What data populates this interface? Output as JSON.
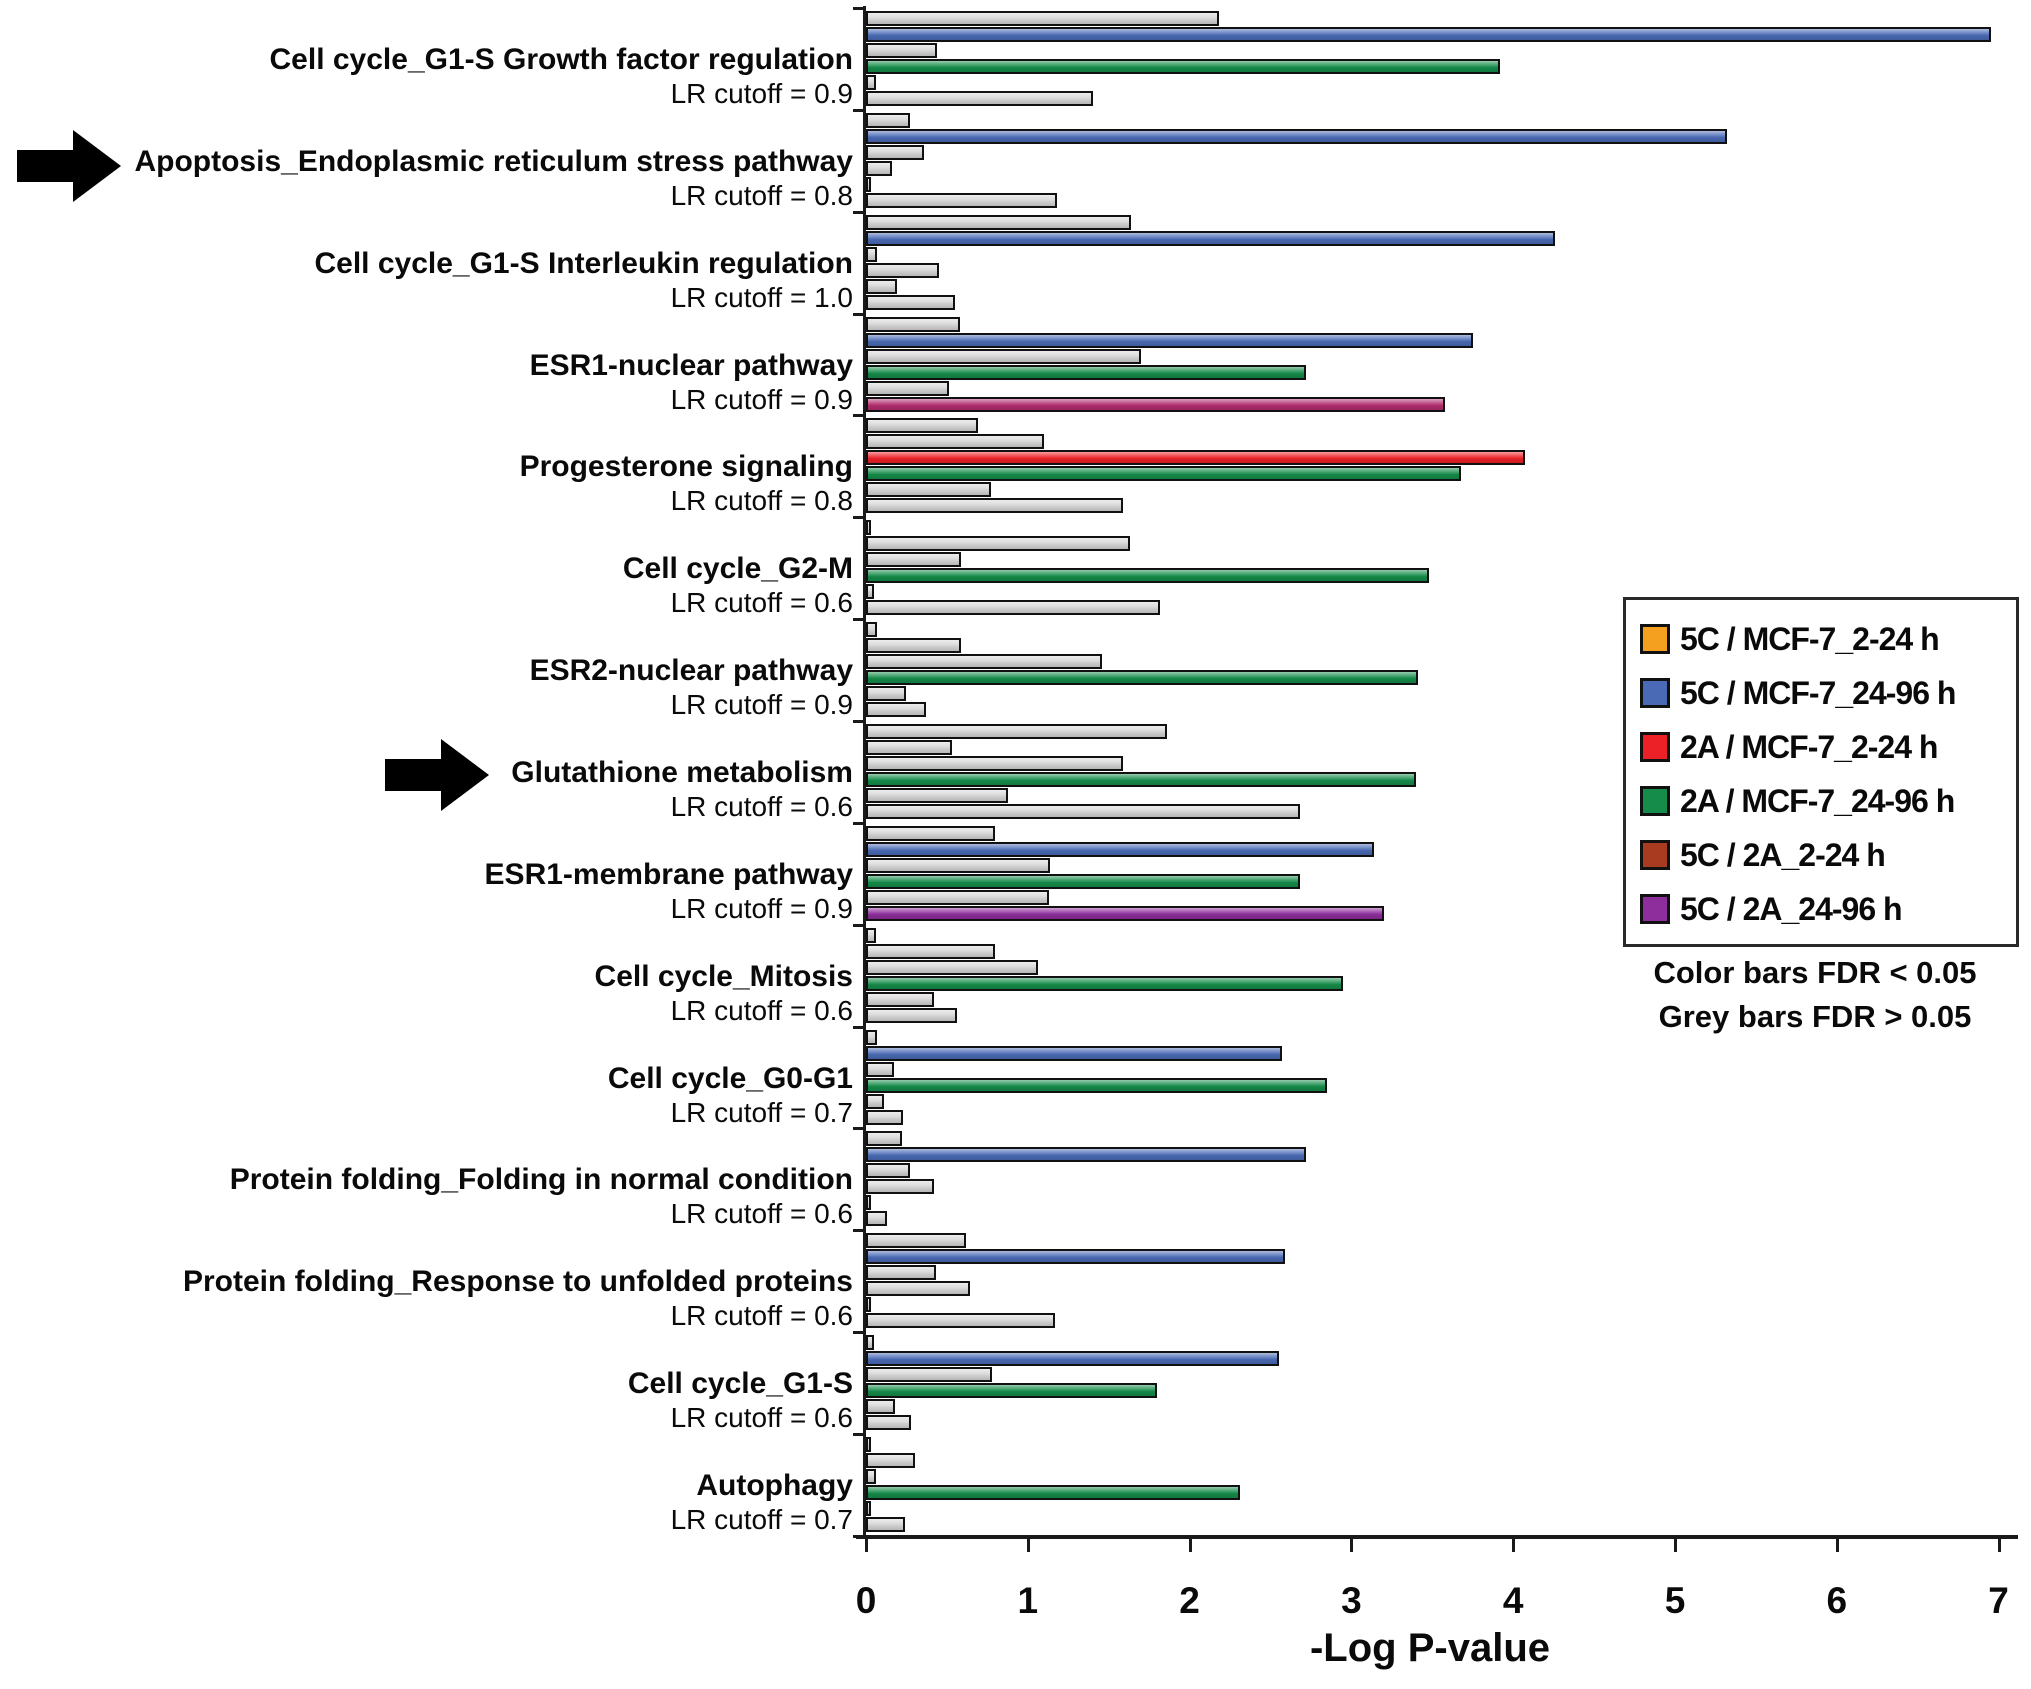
{
  "figure_notes": {
    "color_note": "Color bars FDR < 0.05",
    "grey_note": "Grey bars FDR > 0.05"
  },
  "legend": {
    "entries": [
      {
        "label": "5C / MCF-7_2-24 h",
        "color": "#F5A11F"
      },
      {
        "label": "5C / MCF-7_24-96 h",
        "color": "#4A6AB5"
      },
      {
        "label": "2A / MCF-7_2-24 h",
        "color": "#EC2127"
      },
      {
        "label": "2A / MCF-7_24-96 h",
        "color": "#158C49"
      },
      {
        "label": "5C / 2A_2-24 h",
        "color": "#A93B20"
      },
      {
        "label": "5C / 2A_24-96 h",
        "color": "#8E2D9C"
      }
    ]
  },
  "chart_data": {
    "type": "bar",
    "orientation": "horizontal",
    "xlabel": "-Log P-value",
    "xlim": [
      0,
      7
    ],
    "x_ticks": [
      0,
      1,
      2,
      3,
      4,
      5,
      6,
      7
    ],
    "grid": false,
    "grey_color": "#D6D6D6",
    "series_order": [
      "5C / MCF-7_2-24 h",
      "5C / MCF-7_24-96 h",
      "2A / MCF-7_2-24 h",
      "2A / MCF-7_24-96 h",
      "5C / 2A_2-24 h",
      "5C / 2A_24-96 h"
    ],
    "groups": [
      {
        "name": "Cell cycle_G1-S Growth factor regulation",
        "cutoff_label": "LR cutoff = 0.9",
        "arrow": false,
        "values": [
          2.18,
          6.95,
          0.44,
          3.92,
          0.06,
          1.4
        ],
        "bar_colors": [
          "#D6D6D6",
          "#4A6AB5",
          "#D6D6D6",
          "#158C49",
          "#D6D6D6",
          "#D6D6D6"
        ]
      },
      {
        "name": "Apoptosis_Endoplasmic reticulum stress pathway",
        "cutoff_label": "LR cutoff = 0.8",
        "arrow": true,
        "values": [
          0.27,
          5.32,
          0.36,
          0.16,
          0.03,
          1.18
        ],
        "bar_colors": [
          "#D6D6D6",
          "#4A6AB5",
          "#D6D6D6",
          "#D6D6D6",
          "#D6D6D6",
          "#D6D6D6"
        ]
      },
      {
        "name": "Cell cycle_G1-S Interleukin regulation",
        "cutoff_label": "LR cutoff = 1.0",
        "arrow": false,
        "values": [
          1.64,
          4.26,
          0.07,
          0.45,
          0.19,
          0.55
        ],
        "bar_colors": [
          "#D6D6D6",
          "#4A6AB5",
          "#D6D6D6",
          "#D6D6D6",
          "#D6D6D6",
          "#D6D6D6"
        ]
      },
      {
        "name": "ESR1-nuclear pathway",
        "cutoff_label": "LR cutoff = 0.9",
        "arrow": false,
        "values": [
          0.58,
          3.75,
          1.7,
          2.72,
          0.51,
          3.58
        ],
        "bar_colors": [
          "#D6D6D6",
          "#4A6AB5",
          "#D6D6D6",
          "#158C49",
          "#D6D6D6",
          "#B22D6E"
        ]
      },
      {
        "name": "Progesterone signaling",
        "cutoff_label": "LR cutoff = 0.8",
        "arrow": false,
        "values": [
          0.69,
          1.1,
          4.07,
          3.68,
          0.77,
          1.59
        ],
        "bar_colors": [
          "#D6D6D6",
          "#D6D6D6",
          "#EC2127",
          "#158C49",
          "#D6D6D6",
          "#D6D6D6"
        ]
      },
      {
        "name": "Cell cycle_G2-M",
        "cutoff_label": "LR cutoff = 0.6",
        "arrow": false,
        "values": [
          0.03,
          1.63,
          0.59,
          3.48,
          0.05,
          1.82
        ],
        "bar_colors": [
          "#D6D6D6",
          "#D6D6D6",
          "#D6D6D6",
          "#158C49",
          "#D6D6D6",
          "#D6D6D6"
        ]
      },
      {
        "name": "ESR2-nuclear pathway",
        "cutoff_label": "LR cutoff = 0.9",
        "arrow": false,
        "values": [
          0.07,
          0.59,
          1.46,
          3.41,
          0.25,
          0.37
        ],
        "bar_colors": [
          "#D6D6D6",
          "#D6D6D6",
          "#D6D6D6",
          "#158C49",
          "#D6D6D6",
          "#D6D6D6"
        ]
      },
      {
        "name": "Glutathione metabolism",
        "cutoff_label": "LR cutoff = 0.6",
        "arrow": true,
        "values": [
          1.86,
          0.53,
          1.59,
          3.4,
          0.88,
          2.68
        ],
        "bar_colors": [
          "#D6D6D6",
          "#D6D6D6",
          "#D6D6D6",
          "#158C49",
          "#D6D6D6",
          "#D6D6D6"
        ]
      },
      {
        "name": "ESR1-membrane pathway",
        "cutoff_label": "LR cutoff = 0.9",
        "arrow": false,
        "values": [
          0.8,
          3.14,
          1.14,
          2.68,
          1.13,
          3.2
        ],
        "bar_colors": [
          "#D6D6D6",
          "#4A6AB5",
          "#D6D6D6",
          "#158C49",
          "#D6D6D6",
          "#8E2D9C"
        ]
      },
      {
        "name": "Cell cycle_Mitosis",
        "cutoff_label": "LR cutoff = 0.6",
        "arrow": false,
        "values": [
          0.06,
          0.8,
          1.06,
          2.95,
          0.42,
          0.56
        ],
        "bar_colors": [
          "#D6D6D6",
          "#D6D6D6",
          "#D6D6D6",
          "#158C49",
          "#D6D6D6",
          "#D6D6D6"
        ]
      },
      {
        "name": "Cell cycle_G0-G1",
        "cutoff_label": "LR cutoff = 0.7",
        "arrow": false,
        "values": [
          0.07,
          2.57,
          0.17,
          2.85,
          0.11,
          0.23
        ],
        "bar_colors": [
          "#D6D6D6",
          "#4A6AB5",
          "#D6D6D6",
          "#158C49",
          "#D6D6D6",
          "#D6D6D6"
        ]
      },
      {
        "name": "Protein folding_Folding in normal condition",
        "cutoff_label": "LR cutoff = 0.6",
        "arrow": false,
        "values": [
          0.22,
          2.72,
          0.27,
          0.42,
          0.03,
          0.13
        ],
        "bar_colors": [
          "#D6D6D6",
          "#4A6AB5",
          "#D6D6D6",
          "#D6D6D6",
          "#D6D6D6",
          "#D6D6D6"
        ]
      },
      {
        "name": "Protein folding_Response to unfolded proteins",
        "cutoff_label": "LR cutoff = 0.6",
        "arrow": false,
        "values": [
          0.62,
          2.59,
          0.43,
          0.64,
          0.03,
          1.17
        ],
        "bar_colors": [
          "#D6D6D6",
          "#4A6AB5",
          "#D6D6D6",
          "#D6D6D6",
          "#D6D6D6",
          "#D6D6D6"
        ]
      },
      {
        "name": "Cell cycle_G1-S",
        "cutoff_label": "LR cutoff = 0.6",
        "arrow": false,
        "values": [
          0.05,
          2.55,
          0.78,
          1.8,
          0.18,
          0.28
        ],
        "bar_colors": [
          "#D6D6D6",
          "#4A6AB5",
          "#D6D6D6",
          "#158C49",
          "#D6D6D6",
          "#D6D6D6"
        ]
      },
      {
        "name": "Autophagy",
        "cutoff_label": "LR cutoff = 0.7",
        "arrow": false,
        "values": [
          0.03,
          0.3,
          0.06,
          2.31,
          0.03,
          0.24
        ],
        "bar_colors": [
          "#D6D6D6",
          "#D6D6D6",
          "#D6D6D6",
          "#158C49",
          "#D6D6D6",
          "#D6D6D6"
        ]
      }
    ]
  }
}
